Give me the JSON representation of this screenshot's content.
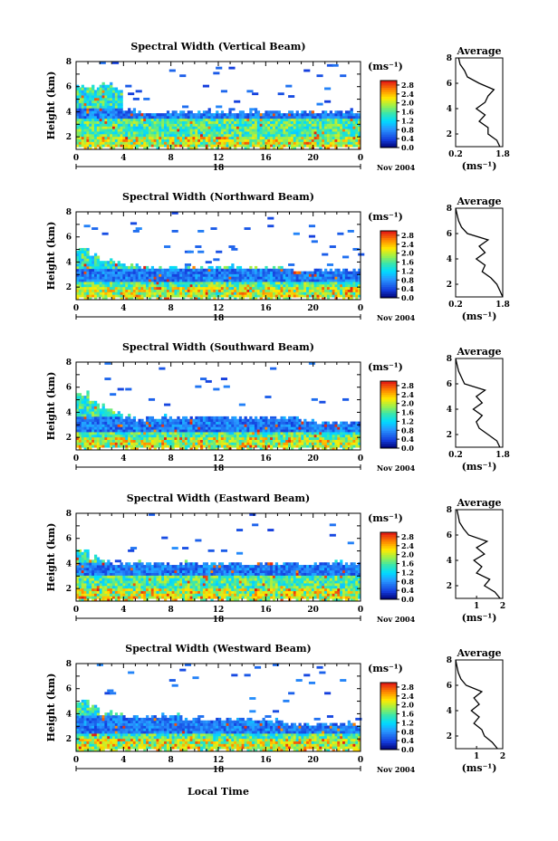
{
  "figure": {
    "x_axis_label": "Local Time",
    "x_tick_labels": [
      "0",
      "4",
      "8",
      "12",
      "16",
      "20",
      "0"
    ],
    "date_label": "18",
    "month_label": "Nov 2004",
    "y_axis_label": "Height (km)",
    "y_tick_labels": [
      "2",
      "4",
      "6",
      "8"
    ],
    "colorbar_unit": "(ms⁻¹)",
    "colorbar_ticks": [
      "0.0",
      "0.4",
      "0.8",
      "1.2",
      "1.6",
      "2.0",
      "2.4",
      "2.8"
    ],
    "avg_title": "Average",
    "avg_x_label": "(ms⁻¹)"
  },
  "chart_data": [
    {
      "type": "heatmap",
      "title": "Spectral Width (Vertical Beam)",
      "xlabel": "",
      "ylabel": "Height (km)",
      "x_range_hours": [
        0,
        24
      ],
      "y_range_km": [
        1,
        8
      ],
      "color_range_ms": [
        0,
        3.0
      ],
      "colorbar_ticks": [
        0.0,
        0.4,
        0.8,
        1.2,
        1.6,
        2.0,
        2.4,
        2.8
      ],
      "echo_top_km": [
        6.0,
        6.0,
        6.2,
        5.8,
        4.2,
        4.0,
        4.0,
        4.0,
        4.0,
        4.0,
        4.0,
        4.0,
        4.0,
        4.0,
        4.0,
        4.0,
        4.0,
        4.0,
        4.0,
        4.0,
        4.0,
        4.0,
        4.0,
        4.0,
        4.0
      ],
      "low_width_layer_km": [
        3.4,
        4.2
      ],
      "average_profile": {
        "title": "Average",
        "xlabel": "(ms⁻¹)",
        "x_ticks": [
          0.2,
          1.8
        ],
        "xlim": [
          0.2,
          1.8
        ],
        "ylim": [
          1,
          8
        ],
        "height_km": [
          1.0,
          1.5,
          2.0,
          2.5,
          3.0,
          3.5,
          4.0,
          4.5,
          5.0,
          5.5,
          6.0,
          6.5,
          7.0,
          7.5,
          8.0
        ],
        "width_ms": [
          1.7,
          1.6,
          1.3,
          1.3,
          1.0,
          1.2,
          0.9,
          1.2,
          1.3,
          1.5,
          1.0,
          0.6,
          0.5,
          0.35,
          0.3
        ]
      }
    },
    {
      "type": "heatmap",
      "title": "Spectral Width (Northward Beam)",
      "xlabel": "",
      "ylabel": "Height (km)",
      "x_range_hours": [
        0,
        24
      ],
      "y_range_km": [
        1,
        8
      ],
      "color_range_ms": [
        0,
        3.0
      ],
      "colorbar_ticks": [
        0.0,
        0.4,
        0.8,
        1.2,
        1.6,
        2.0,
        2.4,
        2.8
      ],
      "echo_top_km": [
        5.0,
        4.5,
        4.2,
        4.0,
        3.7,
        3.7,
        3.7,
        3.6,
        3.6,
        3.6,
        3.6,
        3.6,
        3.6,
        3.6,
        3.6,
        3.6,
        3.6,
        3.6,
        3.4,
        3.4,
        3.4,
        3.4,
        3.4,
        3.4,
        3.4
      ],
      "low_width_layer_km": [
        2.5,
        3.5
      ],
      "average_profile": {
        "title": "Average",
        "xlabel": "(ms⁻¹)",
        "x_ticks": [
          0.2,
          1.8
        ],
        "xlim": [
          0.2,
          1.8
        ],
        "ylim": [
          1,
          8
        ],
        "height_km": [
          1.0,
          1.5,
          2.0,
          2.5,
          3.0,
          3.5,
          4.0,
          4.5,
          5.0,
          5.5,
          6.0,
          6.5,
          7.0,
          7.5,
          8.0
        ],
        "width_ms": [
          1.8,
          1.7,
          1.6,
          1.4,
          1.1,
          1.2,
          0.9,
          1.2,
          1.0,
          1.3,
          0.6,
          0.4,
          0.3,
          0.25,
          0.2
        ]
      }
    },
    {
      "type": "heatmap",
      "title": "Spectral Width (Southward Beam)",
      "xlabel": "",
      "ylabel": "Height (km)",
      "x_range_hours": [
        0,
        24
      ],
      "y_range_km": [
        1,
        8
      ],
      "color_range_ms": [
        0,
        3.0
      ],
      "colorbar_ticks": [
        0.0,
        0.4,
        0.8,
        1.2,
        1.6,
        2.0,
        2.4,
        2.8
      ],
      "echo_top_km": [
        5.5,
        5.0,
        4.5,
        4.0,
        3.6,
        3.4,
        3.6,
        3.6,
        3.6,
        3.6,
        3.6,
        3.6,
        3.6,
        3.6,
        3.6,
        3.6,
        3.6,
        3.6,
        3.6,
        3.2,
        3.2,
        3.2,
        3.2,
        3.2,
        3.2
      ],
      "low_width_layer_km": [
        2.5,
        3.6
      ],
      "average_profile": {
        "title": "Average",
        "xlabel": "(ms⁻¹)",
        "x_ticks": [
          0.2,
          1.8
        ],
        "xlim": [
          0.2,
          1.8
        ],
        "ylim": [
          1,
          8
        ],
        "height_km": [
          1.0,
          1.5,
          2.0,
          2.5,
          3.0,
          3.5,
          4.0,
          4.5,
          5.0,
          5.5,
          6.0,
          6.5,
          7.0,
          7.5,
          8.0
        ],
        "width_ms": [
          1.7,
          1.6,
          1.3,
          1.0,
          0.9,
          1.1,
          0.8,
          1.1,
          0.9,
          1.2,
          0.5,
          0.4,
          0.3,
          0.25,
          0.2
        ]
      }
    },
    {
      "type": "heatmap",
      "title": "Spectral Width (Eastward Beam)",
      "xlabel": "",
      "ylabel": "Height (km)",
      "x_range_hours": [
        0,
        24
      ],
      "y_range_km": [
        1,
        8
      ],
      "color_range_ms": [
        0,
        3.0
      ],
      "colorbar_ticks": [
        0.0,
        0.4,
        0.8,
        1.2,
        1.6,
        2.0,
        2.4,
        2.8
      ],
      "echo_top_km": [
        5.0,
        4.5,
        4.2,
        4.0,
        4.0,
        4.0,
        4.0,
        4.0,
        4.0,
        4.0,
        4.0,
        4.0,
        4.0,
        4.0,
        4.0,
        4.0,
        4.0,
        4.0,
        4.0,
        4.0,
        4.0,
        4.0,
        4.0,
        4.0,
        4.0
      ],
      "low_width_layer_km": [
        3.0,
        4.0
      ],
      "average_profile": {
        "title": "Average",
        "xlabel": "(ms⁻¹)",
        "x_ticks": [
          1,
          2
        ],
        "xlim": [
          0.2,
          2.0
        ],
        "ylim": [
          1,
          8
        ],
        "height_km": [
          1.0,
          1.5,
          2.0,
          2.5,
          3.0,
          3.5,
          4.0,
          4.5,
          5.0,
          5.5,
          6.0,
          6.5,
          7.0,
          7.5,
          8.0
        ],
        "width_ms": [
          1.9,
          1.7,
          1.3,
          1.5,
          1.0,
          1.2,
          0.9,
          1.3,
          1.0,
          1.4,
          0.7,
          0.5,
          0.35,
          0.3,
          0.25
        ]
      }
    },
    {
      "type": "heatmap",
      "title": "Spectral Width (Westward Beam)",
      "xlabel": "Local Time",
      "ylabel": "Height (km)",
      "x_range_hours": [
        0,
        24
      ],
      "y_range_km": [
        1,
        8
      ],
      "color_range_ms": [
        0,
        3.0
      ],
      "colorbar_ticks": [
        0.0,
        0.4,
        0.8,
        1.2,
        1.6,
        2.0,
        2.4,
        2.8
      ],
      "echo_top_km": [
        5.0,
        4.5,
        4.0,
        4.0,
        3.8,
        3.8,
        3.8,
        3.8,
        3.8,
        3.6,
        3.6,
        3.6,
        3.6,
        3.6,
        3.6,
        3.6,
        3.4,
        3.4,
        3.2,
        3.2,
        3.2,
        3.2,
        3.2,
        3.2,
        3.2
      ],
      "low_width_layer_km": [
        2.5,
        3.8
      ],
      "average_profile": {
        "title": "Average",
        "xlabel": "(ms⁻¹)",
        "x_ticks": [
          1,
          2
        ],
        "xlim": [
          0.2,
          2.0
        ],
        "ylim": [
          1,
          8
        ],
        "height_km": [
          1.0,
          1.5,
          2.0,
          2.5,
          3.0,
          3.5,
          4.0,
          4.5,
          5.0,
          5.5,
          6.0,
          6.5,
          7.0,
          7.5,
          8.0
        ],
        "width_ms": [
          1.8,
          1.6,
          1.3,
          1.2,
          0.9,
          1.1,
          0.8,
          1.1,
          0.9,
          1.2,
          0.6,
          0.4,
          0.3,
          0.25,
          0.2
        ]
      }
    }
  ]
}
